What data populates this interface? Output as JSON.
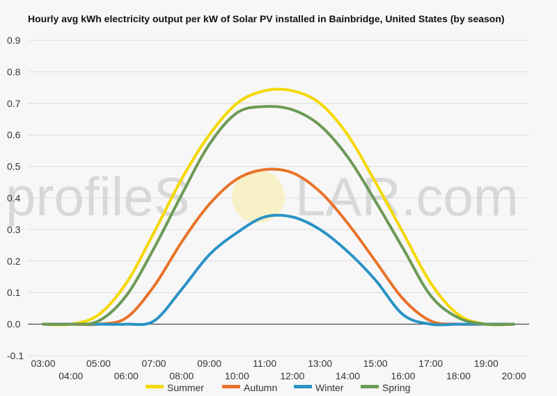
{
  "chart_data": {
    "type": "line",
    "title": "Hourly avg kWh electricity output per kW of Solar PV installed in Bainbridge, United States (by season)",
    "xlabel": "",
    "ylabel": "",
    "ylim": [
      -0.1,
      0.9
    ],
    "yticks": [
      "-0.1",
      "0.0",
      "0.1",
      "0.2",
      "0.3",
      "0.4",
      "0.5",
      "0.6",
      "0.7",
      "0.8",
      "0.9"
    ],
    "x": [
      "03:00",
      "04:00",
      "05:00",
      "06:00",
      "07:00",
      "08:00",
      "09:00",
      "10:00",
      "11:00",
      "12:00",
      "13:00",
      "14:00",
      "15:00",
      "16:00",
      "17:00",
      "18:00",
      "19:00",
      "20:00"
    ],
    "grid": true,
    "legend_position": "bottom",
    "series": [
      {
        "name": "Summer",
        "color": "#f5d800",
        "values": [
          0.0,
          0.0,
          0.03,
          0.13,
          0.29,
          0.46,
          0.6,
          0.7,
          0.74,
          0.74,
          0.7,
          0.6,
          0.45,
          0.29,
          0.13,
          0.03,
          0.0,
          0.0
        ]
      },
      {
        "name": "Autumn",
        "color": "#e8732a",
        "values": [
          0.0,
          0.0,
          0.0,
          0.02,
          0.12,
          0.26,
          0.38,
          0.46,
          0.49,
          0.48,
          0.42,
          0.32,
          0.2,
          0.08,
          0.01,
          0.0,
          0.0,
          0.0
        ]
      },
      {
        "name": "Winter",
        "color": "#2a93c5",
        "values": [
          0.0,
          0.0,
          0.0,
          0.0,
          0.01,
          0.11,
          0.22,
          0.29,
          0.34,
          0.34,
          0.3,
          0.23,
          0.14,
          0.03,
          0.0,
          0.0,
          0.0,
          0.0
        ]
      },
      {
        "name": "Spring",
        "color": "#6d9a56",
        "values": [
          0.0,
          0.0,
          0.01,
          0.09,
          0.24,
          0.41,
          0.57,
          0.67,
          0.69,
          0.68,
          0.63,
          0.53,
          0.39,
          0.24,
          0.09,
          0.02,
          0.0,
          0.0
        ]
      }
    ]
  },
  "watermark": {
    "left": "profileS",
    "right": "LAR.com"
  }
}
